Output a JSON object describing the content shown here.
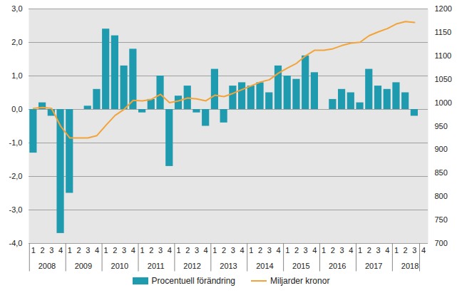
{
  "chart_data": {
    "type": "bar",
    "categories": [
      "1",
      "2",
      "3",
      "4",
      "1",
      "2",
      "3",
      "4",
      "1",
      "2",
      "3",
      "4",
      "1",
      "2",
      "3",
      "4",
      "1",
      "2",
      "3",
      "4",
      "1",
      "2",
      "3",
      "4",
      "1",
      "2",
      "3",
      "4",
      "1",
      "2",
      "3",
      "4",
      "1",
      "2",
      "3",
      "4",
      "1",
      "2",
      "3",
      "4",
      "1",
      "2",
      "3",
      "4"
    ],
    "years": [
      "2008",
      "2009",
      "2010",
      "2011",
      "2012",
      "2013",
      "2014",
      "2015",
      "2016",
      "2017",
      "2018"
    ],
    "series": [
      {
        "name": "Procentuell förändring",
        "type": "bar",
        "color": "#1f9bb0",
        "values": [
          -1.3,
          0.2,
          -0.2,
          -3.7,
          -2.5,
          0.0,
          0.1,
          0.6,
          2.4,
          2.2,
          1.3,
          1.8,
          -0.1,
          0.3,
          1.0,
          -1.7,
          0.4,
          0.7,
          -0.1,
          -0.5,
          1.2,
          -0.4,
          0.7,
          0.8,
          0.7,
          0.8,
          0.5,
          1.3,
          1.0,
          0.9,
          1.6,
          1.1,
          0.0,
          0.3,
          0.6,
          0.5,
          0.2,
          1.2,
          0.7,
          0.6,
          0.8,
          0.5,
          -0.2,
          null
        ]
      },
      {
        "name": "Miljarder kronor",
        "type": "line",
        "axis": "y2",
        "color": "#f2a43a",
        "values": [
          988,
          990,
          988,
          950,
          925,
          925,
          925,
          930,
          952,
          973,
          986,
          1005,
          1004,
          1007,
          1018,
          1000,
          1004,
          1010,
          1008,
          1004,
          1016,
          1013,
          1020,
          1028,
          1036,
          1044,
          1049,
          1063,
          1074,
          1084,
          1100,
          1112,
          1112,
          1115,
          1122,
          1127,
          1129,
          1143,
          1151,
          1158,
          1168,
          1173,
          1171,
          null
        ]
      }
    ],
    "ylim": [
      -4,
      3
    ],
    "yticks": [
      {
        "value": -4,
        "label": "-4,0"
      },
      {
        "value": -3,
        "label": "-3,0"
      },
      {
        "value": -2,
        "label": "-2,0"
      },
      {
        "value": -1,
        "label": "-1,0"
      },
      {
        "value": 0,
        "label": "0,0"
      },
      {
        "value": 1,
        "label": "1,0"
      },
      {
        "value": 2,
        "label": "2,0"
      },
      {
        "value": 3,
        "label": "3,0"
      }
    ],
    "y2lim": [
      700,
      1200
    ],
    "y2ticks": [
      700,
      750,
      800,
      850,
      900,
      950,
      1000,
      1050,
      1100,
      1150,
      1200
    ],
    "grid": true,
    "legend": "bottom"
  }
}
